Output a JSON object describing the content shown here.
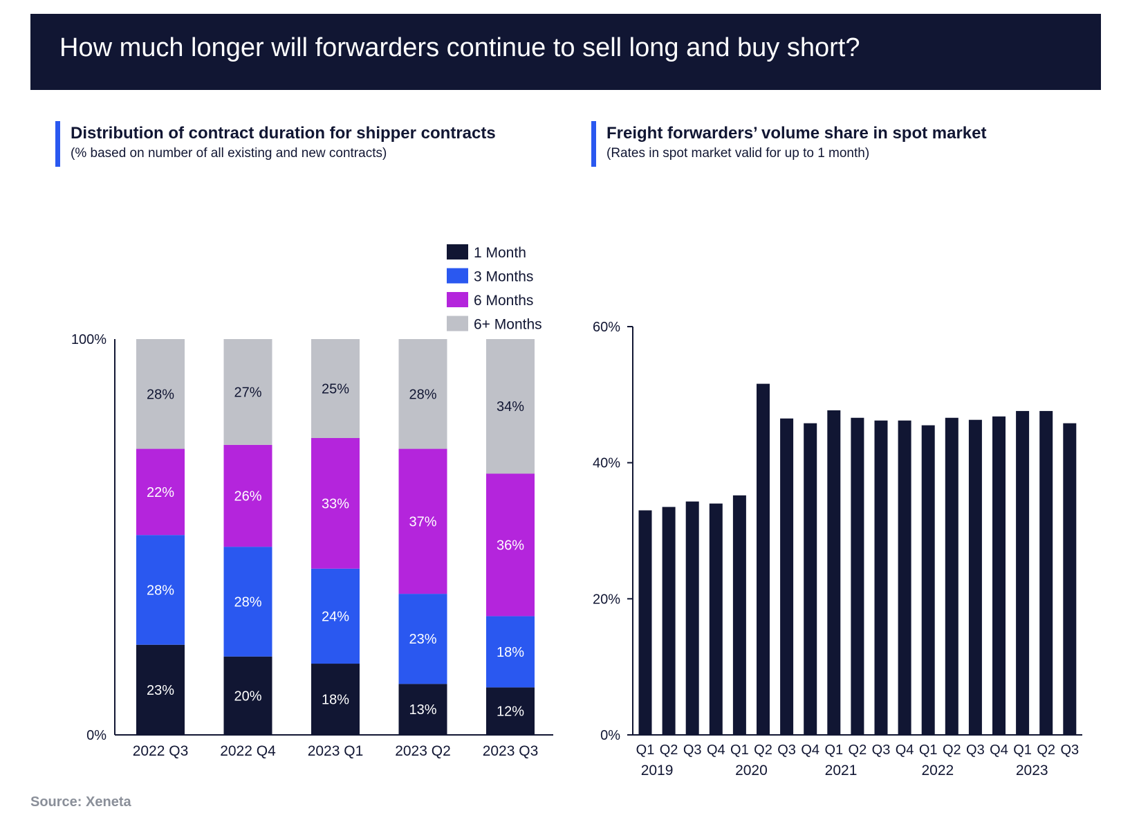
{
  "header": {
    "title": "How much longer will forwarders continue to sell long and buy short?"
  },
  "left_panel": {
    "title": "Distribution of contract duration for shipper contracts",
    "subtitle": "(% based on number of all existing and new contracts)"
  },
  "right_panel": {
    "title": "Freight forwarders’ volume share in spot market",
    "subtitle": "(Rates in spot market valid for up to 1 month)"
  },
  "source": "Source: Xeneta",
  "colors": {
    "banner": "#111633",
    "accent": "#2a58f0",
    "one_month": "#111633",
    "three_months": "#2a58f0",
    "six_months": "#b425dc",
    "six_plus_months": "#bfc1c8"
  },
  "chart_data": [
    {
      "type": "bar",
      "stacked": true,
      "title": "Distribution of contract duration for shipper contracts",
      "categories": [
        "2022 Q3",
        "2022 Q4",
        "2023 Q1",
        "2023 Q2",
        "2023 Q3"
      ],
      "series": [
        {
          "name": "1 Month",
          "color": "#111633",
          "values": [
            23,
            20,
            18,
            13,
            12
          ],
          "labels": [
            "23%",
            "20%",
            "18%",
            "13%",
            "12%"
          ]
        },
        {
          "name": "3 Months",
          "color": "#2a58f0",
          "values": [
            28,
            28,
            24,
            23,
            18
          ],
          "labels": [
            "28%",
            "28%",
            "24%",
            "23%",
            "18%"
          ]
        },
        {
          "name": "6 Months",
          "color": "#b425dc",
          "values": [
            22,
            26,
            33,
            37,
            36
          ],
          "labels": [
            "22%",
            "26%",
            "33%",
            "37%",
            "36%"
          ]
        },
        {
          "name": "6+ Months",
          "color": "#bfc1c8",
          "values": [
            28,
            27,
            25,
            28,
            34
          ],
          "labels": [
            "28%",
            "27%",
            "25%",
            "28%",
            "34%"
          ]
        }
      ],
      "yticks": [
        "0%",
        "100%"
      ],
      "ylim": [
        0,
        100
      ],
      "legend": "top-right"
    },
    {
      "type": "bar",
      "title": "Freight forwarders’ volume share in spot market",
      "quarters": [
        "Q1",
        "Q2",
        "Q3",
        "Q4",
        "Q1",
        "Q2",
        "Q3",
        "Q4",
        "Q1",
        "Q2",
        "Q3",
        "Q4",
        "Q1",
        "Q2",
        "Q3",
        "Q4",
        "Q1",
        "Q2",
        "Q3"
      ],
      "years": [
        {
          "label": "2019",
          "quarter_index": 0.5
        },
        {
          "label": "2020",
          "quarter_index": 4.5
        },
        {
          "label": "2021",
          "quarter_index": 8.3
        },
        {
          "label": "2022",
          "quarter_index": 12.4
        },
        {
          "label": "2023",
          "quarter_index": 16.4
        }
      ],
      "values": [
        33.0,
        33.5,
        34.3,
        34.0,
        35.2,
        51.6,
        46.5,
        45.8,
        47.7,
        46.6,
        46.2,
        46.2,
        45.5,
        46.6,
        46.3,
        46.8,
        47.6,
        47.6,
        45.8
      ],
      "color": "#111633",
      "yticks": [
        "0%",
        "20%",
        "40%",
        "60%"
      ],
      "ytick_values": [
        0,
        20,
        40,
        60
      ],
      "ylim": [
        0,
        60
      ]
    }
  ]
}
